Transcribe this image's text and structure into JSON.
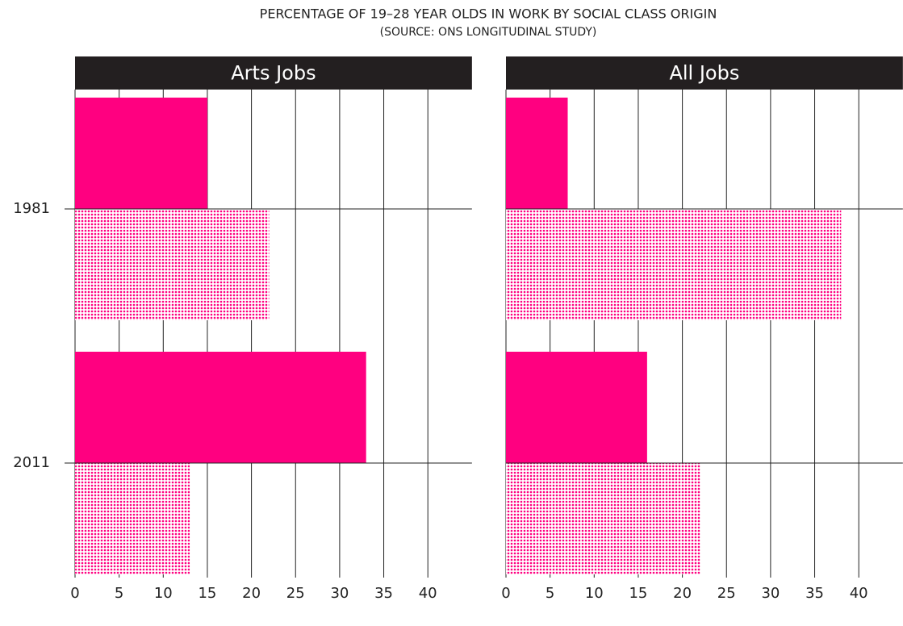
{
  "title": "PERCENTAGE OF 19–28 YEAR OLDS IN WORK BY SOCIAL CLASS ORIGIN",
  "subtitle": "(SOURCE: ONS LONGITUDINAL STUDY)",
  "chart_data": [
    {
      "type": "bar",
      "orientation": "horizontal",
      "title": "Arts Jobs",
      "categories": [
        "1981",
        "2011"
      ],
      "series": [
        {
          "color": "#ff0080",
          "pattern": "solid",
          "values": [
            15,
            33
          ]
        },
        {
          "color": "#ff0080",
          "pattern": "dots",
          "values": [
            22,
            13
          ]
        }
      ],
      "xlim": [
        0,
        45
      ],
      "xticks": [
        0,
        5,
        10,
        15,
        20,
        25,
        30,
        35,
        40
      ],
      "grid": true
    },
    {
      "type": "bar",
      "orientation": "horizontal",
      "title": "All Jobs",
      "categories": [
        "1981",
        "2011"
      ],
      "series": [
        {
          "color": "#ff0080",
          "pattern": "solid",
          "values": [
            7,
            16
          ]
        },
        {
          "color": "#ff0080",
          "pattern": "dots",
          "values": [
            38,
            22
          ]
        }
      ],
      "xlim": [
        0,
        45
      ],
      "xticks": [
        0,
        5,
        10,
        15,
        20,
        25,
        30,
        35,
        40
      ],
      "grid": true
    }
  ]
}
